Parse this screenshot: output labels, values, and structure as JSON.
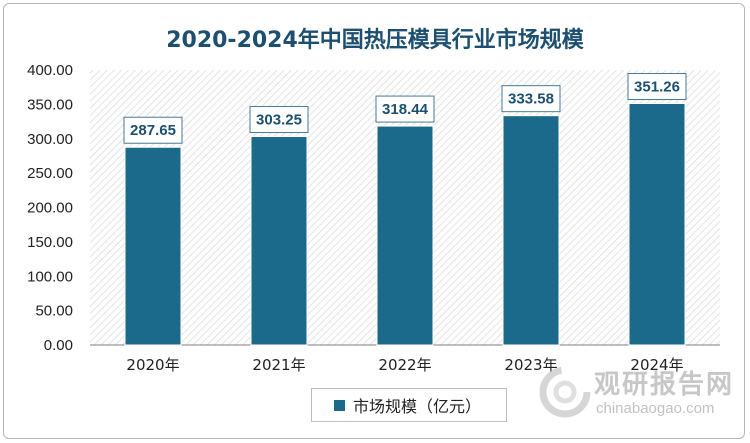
{
  "chart_data": {
    "type": "bar",
    "title": "2020-2024年中国热压模具行业市场规模",
    "categories": [
      "2020年",
      "2021年",
      "2022年",
      "2023年",
      "2024年"
    ],
    "series": [
      {
        "name": "市场规模（亿元）",
        "values": [
          287.65,
          303.25,
          318.44,
          333.58,
          351.26
        ]
      }
    ],
    "data_labels": [
      "287.65",
      "303.25",
      "318.44",
      "333.58",
      "351.26"
    ],
    "yticks": [
      "0.00",
      "50.00",
      "100.00",
      "150.00",
      "200.00",
      "250.00",
      "300.00",
      "350.00",
      "400.00"
    ],
    "ylim": [
      0,
      400
    ],
    "xlabel": "",
    "ylabel": "",
    "legend_position": "bottom",
    "grid": false,
    "bar_color": "#1b6a8c",
    "label_color": "#1c4f70"
  },
  "watermark": {
    "cn": "观研报告网",
    "en": "chinabaogao.com"
  }
}
